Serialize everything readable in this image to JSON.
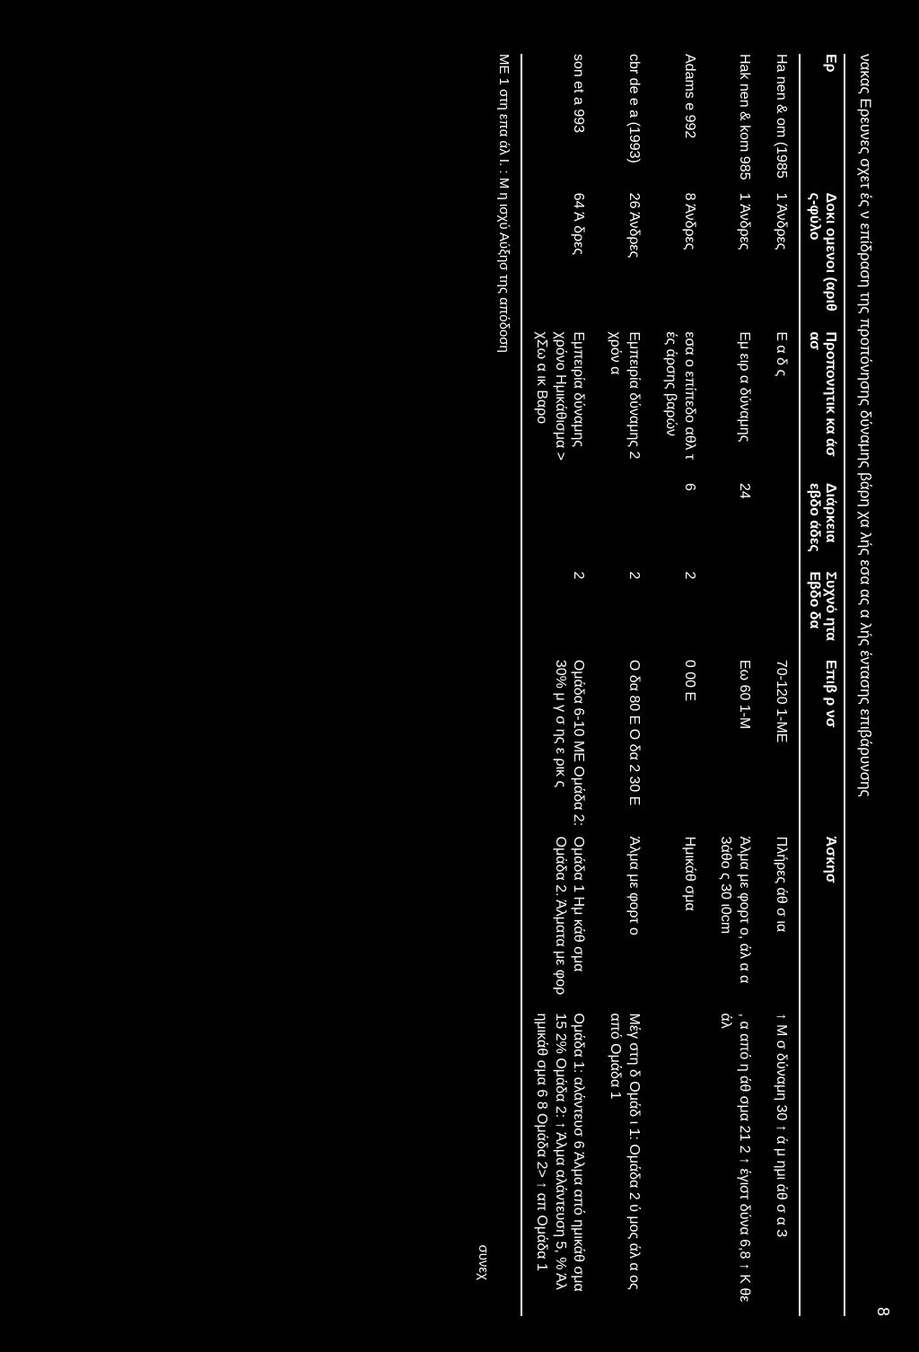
{
  "pageNumber": "8",
  "title": "νακας   Ερευνες σχετ  ές     ν επίδραση της προπόνησης δύναμης    βάρη χα   λής   εσα ας   α       λής έντασης επιβάρυνσης",
  "headers": {
    "ref": "Ερ",
    "subjects": "Δοκι   ομενοι (αριθ  ς-φύλο",
    "training": "Προπονητικ κα  άσ ασ",
    "duration": "Διάρκεια εβδο  άδες",
    "freq": "Συχνό  ητα Εβδο    δα",
    "load": "Επιβ  ρ  νσ",
    "exercise": "Άσκησ",
    "results": ""
  },
  "rows": [
    {
      "ref": "Ha   nen &   om (1985",
      "subjects": "1  Άνδρες",
      "training": "Ε       α δ        ς",
      "duration": "",
      "freq": "",
      "load": "70-120 1-ΜΕ",
      "exercise": "Πλήρες   άθ σ ια",
      "results": "↑ Μ    σ       δύναμη 30 ↑ ά  μ ημι  άθ σ  α     3"
    },
    {
      "ref": "Hak  nen & kom 985",
      "subjects": "1  Άνδρες",
      "training": "Εμ  ειρ α δύναμης",
      "duration": "24",
      "freq": "",
      "load": "Εω   60 1-Μ",
      "exercise": "Άλμα με φορτ ο, άλ  α  α 3άθο  ς 30  ι0cm",
      "results": "    , α από η     άθ σμα 21 2 ↑   έγιστ   δύνα 6,8 ↑  Κ  θε    άλ"
    },
    {
      "ref": "Adams e        992",
      "subjects": "8  Άνδρες",
      "training": "εσα ο επίπεδο αθλ τ ές άρσης βαρών",
      "duration": "6",
      "freq": "2",
      "load": "0    00 Ε",
      "exercise": "Ημικάθ σμα",
      "results": ""
    },
    {
      "ref": "cbr de e   a (1993)",
      "subjects": "26 Άνδρες",
      "training": "Εμπειρία δύναμης  2 χρόν α",
      "duration": "",
      "freq": "2",
      "load": "Ο    δα 80      Ε Ο    δα 2 30      Ε",
      "exercise": "Άλμα με φορτ ο",
      "results": "Μέγ στη  δ Ομάδ  ι 1: Ομάδα 2 ύ μος άλ  α  ος από Ομάδα 1"
    },
    {
      "ref": "son et a      993",
      "subjects": "64 Ά  δρες",
      "training": "Εμπειρία δύναμης χρόνο Ημικάθισμα >  χΣω  α  ικ Βαρο",
      "duration": "",
      "freq": "2",
      "load": "Ομάδα 6-10 ΜΕ Ομάδα 2: 30% μ  γ σ ης ε  ρικ  ς",
      "exercise": "Ομάδα 1 Ημ κάθ σμα Ομάδα 2. Άλματα με φορ",
      "results": "Ομάδα 1: αλάντευσ        6 Άλμα από ημικάθ σμα 15 2% Ομάδα 2: ↑ Άλμα αλάντευση  5,  % Άλ ημικάθ σμα 6 8 Ομάδα 2> ↑ απ Ομάδα 1"
    }
  ],
  "footnotes": "ΜΕ   1       στη επα  άλ Ι. : Μ       η ισχύ Αύξησ   της απόδοση",
  "continue": "συνεχ"
}
